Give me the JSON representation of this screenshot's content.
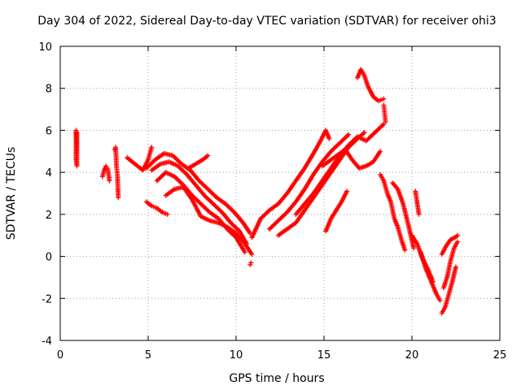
{
  "chart_data": {
    "type": "scatter",
    "title": "Day 304 of 2022, Sidereal Day-to-day VTEC variation (SDTVAR) for receiver ohi3",
    "xlabel": "GPS time / hours",
    "ylabel": "SDTVAR / TECUs",
    "xlim": [
      0,
      25
    ],
    "ylim": [
      -4,
      10
    ],
    "xticks": [
      0,
      5,
      10,
      15,
      20,
      25
    ],
    "yticks": [
      -4,
      -2,
      0,
      2,
      4,
      6,
      8,
      10
    ],
    "xtick_labels": [
      "0",
      "5",
      "10",
      "15",
      "20",
      "25"
    ],
    "ytick_labels": [
      "-4",
      "-2",
      "0",
      "2",
      "4",
      "6",
      "8",
      "10"
    ],
    "grid": true,
    "marker": "+",
    "color": "#ff0000",
    "series": [
      {
        "name": "s01",
        "x": [
          0.9,
          0.9,
          0.9,
          0.95,
          0.95
        ],
        "y": [
          5.8,
          6.0,
          4.6,
          4.3,
          5.9
        ]
      },
      {
        "name": "s02",
        "x": [
          2.4,
          2.5,
          2.6,
          2.7,
          2.8
        ],
        "y": [
          3.8,
          4.1,
          4.3,
          4.2,
          3.6
        ]
      },
      {
        "name": "s03",
        "x": [
          3.1,
          3.15,
          3.2,
          3.25,
          3.3
        ],
        "y": [
          5.1,
          5.2,
          4.3,
          3.9,
          2.8
        ]
      },
      {
        "name": "s04",
        "x": [
          3.8,
          4.1,
          4.4,
          4.7,
          5.0,
          5.2
        ],
        "y": [
          4.7,
          4.5,
          4.3,
          4.1,
          4.6,
          5.2
        ]
      },
      {
        "name": "s05",
        "x": [
          4.9,
          5.4,
          5.9,
          6.4,
          6.9,
          7.4,
          7.9,
          8.4,
          8.9,
          9.4,
          9.9,
          10.4,
          10.8
        ],
        "y": [
          4.2,
          4.6,
          4.9,
          4.8,
          4.4,
          4.1,
          3.6,
          3.2,
          2.8,
          2.5,
          2.1,
          1.6,
          1.1
        ]
      },
      {
        "name": "s06",
        "x": [
          5.2,
          5.7,
          6.2,
          6.7,
          7.2,
          7.7,
          8.2,
          8.7,
          9.2,
          9.7,
          10.2,
          10.6
        ],
        "y": [
          4.1,
          4.4,
          4.5,
          4.3,
          3.9,
          3.4,
          2.9,
          2.5,
          2.1,
          1.6,
          1.2,
          0.6
        ]
      },
      {
        "name": "s07",
        "x": [
          5.5,
          6.0,
          6.5,
          7.0,
          7.5,
          8.0,
          8.5,
          9.0,
          9.5,
          10.0,
          10.5
        ],
        "y": [
          3.6,
          4.0,
          3.8,
          3.4,
          2.9,
          2.5,
          2.1,
          1.8,
          1.3,
          0.9,
          0.2
        ]
      },
      {
        "name": "s08",
        "x": [
          4.9,
          5.2,
          5.5,
          5.8,
          6.1
        ],
        "y": [
          2.6,
          2.4,
          2.3,
          2.1,
          2.0
        ]
      },
      {
        "name": "s09",
        "x": [
          6.0,
          6.5,
          7.0,
          7.5,
          8.0,
          8.5,
          9.0,
          9.5,
          10.0,
          10.5,
          10.9
        ],
        "y": [
          2.9,
          3.2,
          3.3,
          2.7,
          1.9,
          1.7,
          1.6,
          1.4,
          1.1,
          0.6,
          0.1
        ]
      },
      {
        "name": "s10",
        "x": [
          7.3,
          7.7,
          8.1,
          8.4
        ],
        "y": [
          4.2,
          4.4,
          4.6,
          4.8
        ]
      },
      {
        "name": "s11",
        "x": [
          10.8,
          10.85
        ],
        "y": [
          -0.4,
          -0.3
        ]
      },
      {
        "name": "s12",
        "x": [
          10.9,
          11.4,
          11.9,
          12.4,
          12.9,
          13.4,
          13.9,
          14.4,
          14.8,
          15.1,
          15.3
        ],
        "y": [
          0.9,
          1.8,
          2.2,
          2.5,
          3.0,
          3.6,
          4.2,
          4.9,
          5.5,
          6.0,
          5.6
        ]
      },
      {
        "name": "s13",
        "x": [
          11.9,
          12.4,
          12.9,
          13.4,
          13.9,
          14.4,
          14.9,
          15.4,
          15.9,
          16.4
        ],
        "y": [
          1.3,
          1.7,
          2.1,
          2.6,
          3.2,
          3.9,
          4.5,
          5.0,
          5.4,
          5.8
        ]
      },
      {
        "name": "s14",
        "x": [
          12.4,
          12.9,
          13.4,
          13.9,
          14.4,
          14.9,
          15.4,
          15.9,
          16.4,
          16.9,
          17.3
        ],
        "y": [
          1.0,
          1.3,
          1.6,
          2.2,
          2.8,
          3.4,
          4.0,
          4.6,
          5.2,
          5.6,
          5.9
        ]
      },
      {
        "name": "s15",
        "x": [
          13.4,
          13.9,
          14.4,
          14.9,
          15.4,
          15.9,
          16.4,
          16.9,
          17.4,
          17.9,
          18.4
        ],
        "y": [
          2.0,
          2.5,
          3.0,
          3.6,
          4.2,
          4.8,
          5.3,
          5.7,
          5.5,
          5.9,
          6.3
        ]
      },
      {
        "name": "s16",
        "x": [
          14.9,
          15.4,
          15.9,
          16.2,
          16.6,
          17.0,
          17.4,
          17.8,
          18.2
        ],
        "y": [
          4.3,
          4.6,
          4.9,
          5.1,
          4.6,
          4.2,
          4.3,
          4.5,
          5.0
        ]
      },
      {
        "name": "s17",
        "x": [
          15.1,
          15.4,
          15.7,
          16.0,
          16.3
        ],
        "y": [
          1.2,
          1.8,
          2.2,
          2.6,
          3.1
        ]
      },
      {
        "name": "s18",
        "x": [
          16.9,
          17.1,
          17.3,
          17.5,
          17.8,
          18.1,
          18.4
        ],
        "y": [
          8.5,
          8.9,
          8.6,
          8.1,
          7.6,
          7.4,
          7.5
        ]
      },
      {
        "name": "s19",
        "x": [
          18.4,
          18.45,
          18.5
        ],
        "y": [
          7.2,
          6.8,
          6.4
        ]
      },
      {
        "name": "s20",
        "x": [
          18.2,
          18.4,
          18.6,
          18.8,
          19.0,
          19.2,
          19.4,
          19.6
        ],
        "y": [
          3.9,
          3.6,
          3.0,
          2.6,
          1.8,
          1.4,
          0.8,
          0.3
        ]
      },
      {
        "name": "s21",
        "x": [
          18.9,
          19.2,
          19.5,
          19.8,
          20.1
        ],
        "y": [
          3.5,
          3.2,
          2.5,
          1.5,
          0.4
        ]
      },
      {
        "name": "s22",
        "x": [
          20.0,
          20.3,
          20.6,
          20.9,
          21.2
        ],
        "y": [
          1.0,
          0.6,
          -0.1,
          -0.6,
          -1.2
        ]
      },
      {
        "name": "s23",
        "x": [
          20.5,
          20.8,
          21.1,
          21.4,
          21.6
        ],
        "y": [
          0.2,
          -0.6,
          -1.2,
          -1.8,
          -2.1
        ]
      },
      {
        "name": "s24",
        "x": [
          20.2,
          20.4
        ],
        "y": [
          3.1,
          2.0
        ]
      },
      {
        "name": "s25",
        "x": [
          21.7,
          21.9,
          22.1,
          22.3,
          22.5
        ],
        "y": [
          -2.7,
          -2.4,
          -1.8,
          -1.2,
          -0.5
        ]
      },
      {
        "name": "s26",
        "x": [
          21.7,
          21.95,
          22.2,
          22.45,
          22.6
        ],
        "y": [
          0.1,
          0.5,
          0.8,
          0.9,
          1.0
        ]
      },
      {
        "name": "s27",
        "x": [
          21.8,
          22.0,
          22.2,
          22.4,
          22.6
        ],
        "y": [
          -1.5,
          -1.0,
          -0.2,
          0.4,
          0.7
        ]
      }
    ]
  }
}
